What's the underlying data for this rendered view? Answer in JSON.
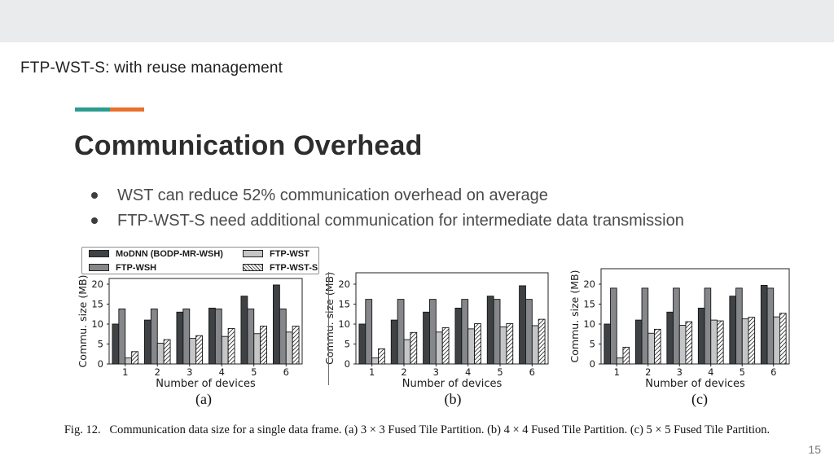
{
  "slide": {
    "kicker": "FTP-WST-S: with reuse management",
    "title": "Communication Overhead",
    "bullets": [
      "WST can reduce 52% communication overhead on average",
      "FTP-WST-S need additional communication for intermediate data transmission"
    ],
    "page_number": "15",
    "accent_teal": "#2a9d8f",
    "accent_orange": "#e8702e"
  },
  "figure": {
    "caption": "Fig. 12.   Communication data size for a single data frame. (a) 3 × 3 Fused Tile Partition. (b) 4 × 4 Fused Tile Partition. (c) 5 × 5 Fused Tile Partition.",
    "legend": [
      {
        "label": "MoDNN (BODP-MR-WSH)",
        "color": "#3f4245",
        "hatch": false
      },
      {
        "label": "FTP-WSH",
        "color": "#85878a",
        "hatch": false
      },
      {
        "label": "FTP-WST",
        "color": "#c4c6c7",
        "hatch": false
      },
      {
        "label": "FTP-WST-S",
        "color": "hatch",
        "hatch": true
      }
    ]
  },
  "chart_data": [
    {
      "type": "bar",
      "sublabel": "(a)",
      "partition": "3 × 3 Fused Tile Partition",
      "categories": [
        "1",
        "2",
        "3",
        "4",
        "5",
        "6"
      ],
      "xlabel": "Number of devices",
      "ylabel": "Commu. size (MB)",
      "yticks": [
        0,
        5,
        10,
        15,
        20
      ],
      "ylim": [
        0,
        21.4
      ],
      "series": [
        {
          "name": "MoDNN (BODP-MR-WSH)",
          "values": [
            10,
            11,
            13,
            14,
            17,
            19.8
          ]
        },
        {
          "name": "FTP-WSH",
          "values": [
            13.8,
            13.8,
            13.8,
            13.8,
            13.8,
            13.8
          ]
        },
        {
          "name": "FTP-WST",
          "values": [
            1.5,
            5.2,
            6.4,
            6.9,
            7.6,
            8.0
          ]
        },
        {
          "name": "FTP-WST-S",
          "values": [
            3.1,
            6.1,
            7.1,
            8.9,
            9.5,
            9.5
          ]
        }
      ]
    },
    {
      "type": "bar",
      "sublabel": "(b)",
      "partition": "4 × 4 Fused Tile Partition",
      "categories": [
        "1",
        "2",
        "3",
        "4",
        "5",
        "6"
      ],
      "xlabel": "Number of devices",
      "ylabel": "Commu. size (MB)",
      "yticks": [
        0,
        5,
        10,
        15,
        20
      ],
      "ylim": [
        0,
        22.9
      ],
      "series": [
        {
          "name": "MoDNN (BODP-MR-WSH)",
          "values": [
            10,
            11,
            13,
            14,
            17,
            19.6
          ]
        },
        {
          "name": "FTP-WSH",
          "values": [
            16.2,
            16.2,
            16.2,
            16.2,
            16.2,
            16.2
          ]
        },
        {
          "name": "FTP-WST",
          "values": [
            1.5,
            6.1,
            8.0,
            8.8,
            9.3,
            9.6
          ]
        },
        {
          "name": "FTP-WST-S",
          "values": [
            3.8,
            7.9,
            9.1,
            10.1,
            10.1,
            11.2
          ]
        }
      ]
    },
    {
      "type": "bar",
      "sublabel": "(c)",
      "partition": "5 × 5 Fused Tile Partition",
      "categories": [
        "1",
        "2",
        "3",
        "4",
        "5",
        "6"
      ],
      "xlabel": "Number of devices",
      "ylabel": "Commu. size (MB)",
      "yticks": [
        0,
        5,
        10,
        15,
        20
      ],
      "ylim": [
        0,
        23.9
      ],
      "series": [
        {
          "name": "MoDNN (BODP-MR-WSH)",
          "values": [
            10,
            11,
            13,
            14,
            17,
            19.7
          ]
        },
        {
          "name": "FTP-WSH",
          "values": [
            19.0,
            19.0,
            19.0,
            19.0,
            19.0,
            19.0
          ]
        },
        {
          "name": "FTP-WST",
          "values": [
            1.5,
            7.7,
            9.7,
            11.0,
            11.3,
            11.8
          ]
        },
        {
          "name": "FTP-WST-S",
          "values": [
            4.2,
            8.7,
            10.6,
            10.8,
            11.7,
            12.7
          ]
        }
      ]
    }
  ]
}
